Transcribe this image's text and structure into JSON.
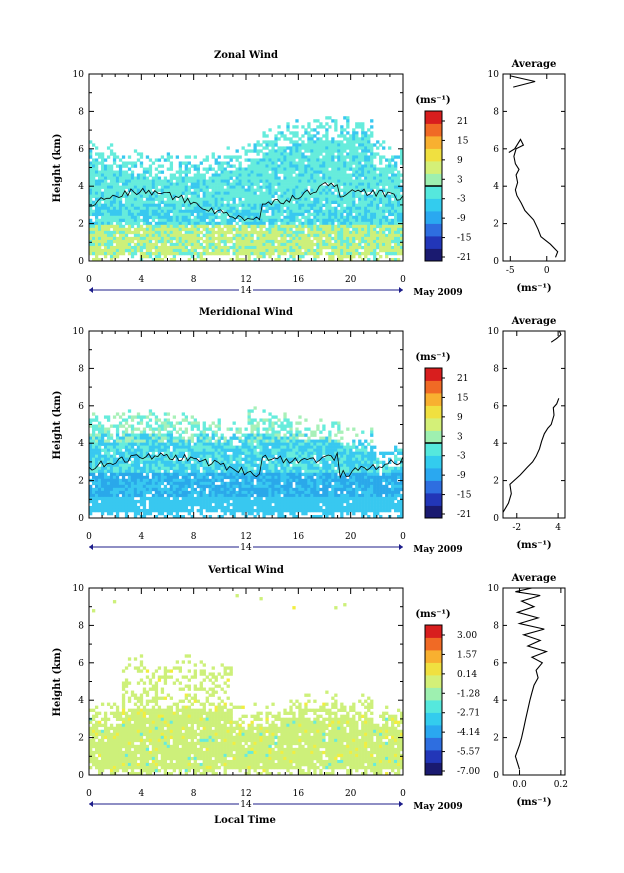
{
  "colors": {
    "scale": [
      "#1a1a70",
      "#2236b8",
      "#2e6ee0",
      "#2aa8f0",
      "#33ccee",
      "#55e8dd",
      "#9ef0b0",
      "#d4f078",
      "#f0e040",
      "#f8b030",
      "#f06a25",
      "#d81e1e"
    ],
    "wind_low": "#cdf07a",
    "wind_mid": "#66ecdc",
    "wind_high": "#38c8f0",
    "wind_dark": "#2aa8ea",
    "wind_yellow": "#f2ee40"
  },
  "x_axis": {
    "ticks": [
      "0",
      "4",
      "8",
      "12",
      "16",
      "20",
      "0"
    ],
    "date_label": "14",
    "month_label": "May 2009",
    "xlabel": "Local Time"
  },
  "panels": [
    {
      "title": "Zonal Wind",
      "ylabel": "Height (km)",
      "yticks": [
        "0",
        "2",
        "4",
        "6",
        "8",
        "10"
      ],
      "colorbar_unit": "(ms⁻¹)",
      "colorbar_ticks": [
        "21",
        "15",
        "9",
        "3",
        "-3",
        "-9",
        "-15",
        "-21"
      ],
      "avg_title": "Average",
      "avg_unit": "(ms⁻¹)",
      "avg_xticks": [
        "-5",
        "0"
      ]
    },
    {
      "title": "Meridional Wind",
      "ylabel": "Height (km)",
      "yticks": [
        "0",
        "2",
        "4",
        "6",
        "8",
        "10"
      ],
      "colorbar_unit": "(ms⁻¹)",
      "colorbar_ticks": [
        "21",
        "15",
        "9",
        "3",
        "-3",
        "-9",
        "-15",
        "-21"
      ],
      "avg_title": "Average",
      "avg_unit": "(ms⁻¹)",
      "avg_xticks": [
        "-2",
        "4"
      ]
    },
    {
      "title": "Vertical Wind",
      "ylabel": "Height (km)",
      "yticks": [
        "0",
        "2",
        "4",
        "6",
        "8",
        "10"
      ],
      "colorbar_unit": "(ms⁻¹)",
      "colorbar_ticks": [
        "3.00",
        "1.57",
        "0.14",
        "-1.28",
        "-2.71",
        "-4.14",
        "-5.57",
        "-7.00"
      ],
      "avg_title": "Average",
      "avg_unit": "(ms⁻¹)",
      "avg_xticks": [
        "0.0",
        "0.2"
      ]
    }
  ],
  "chart_data": [
    {
      "type": "heatmap",
      "title": "Zonal Wind",
      "xlabel": "",
      "ylabel": "Height (km)",
      "x_range_hours": [
        0,
        24
      ],
      "ylim": [
        0,
        10
      ],
      "colorbar_range": [
        -21,
        21
      ],
      "approx_cover": [
        {
          "height_range_km": [
            0,
            2
          ],
          "value": 1
        },
        {
          "height_range_km": [
            2,
            4
          ],
          "value": -3
        },
        {
          "height_range_km": [
            4,
            6.2
          ],
          "value": -2
        }
      ]
    },
    {
      "type": "line",
      "title": "Average",
      "xlabel": "(ms⁻¹)",
      "ylabel": "",
      "xlim": [
        -6,
        2.5
      ],
      "ylim": [
        0,
        10
      ],
      "series": [
        {
          "x": [
            1.2,
            1.5,
            0.5,
            -0.8,
            -1.2,
            -1.8,
            -3.0,
            -3.5,
            -4.1,
            -4.3,
            -4.0,
            -4.2,
            -3.8,
            -4.3,
            -4.5,
            -4.2,
            -3.2,
            -3.6,
            -4.4,
            -5.2,
            -4.6,
            -1.6,
            -5.0
          ],
          "y": [
            0.2,
            0.5,
            0.9,
            1.3,
            1.7,
            2.2,
            2.7,
            3.1,
            3.5,
            3.8,
            4.2,
            4.6,
            4.9,
            5.2,
            5.6,
            6.0,
            6.2,
            6.5,
            6.0,
            5.8,
            9.3,
            9.6,
            9.9
          ]
        }
      ]
    },
    {
      "type": "heatmap",
      "title": "Meridional Wind",
      "xlabel": "",
      "ylabel": "Height (km)",
      "x_range_hours": [
        0,
        24
      ],
      "ylim": [
        0,
        10
      ],
      "colorbar_range": [
        -21,
        21
      ],
      "approx_cover": [
        {
          "height_range_km": [
            0,
            1.2
          ],
          "value": -5
        },
        {
          "height_range_km": [
            1.2,
            2.4
          ],
          "value": -7
        },
        {
          "height_range_km": [
            2.4,
            4.5
          ],
          "value": -3
        },
        {
          "height_range_km": [
            4.5,
            6.2
          ],
          "value": 2
        }
      ]
    },
    {
      "type": "line",
      "title": "Average",
      "xlabel": "(ms⁻¹)",
      "ylabel": "",
      "xlim": [
        -4,
        5
      ],
      "ylim": [
        0,
        10
      ],
      "series": [
        {
          "x": [
            -4.0,
            -3.2,
            -2.8,
            -3.0,
            -1.5,
            -0.5,
            0.3,
            0.8,
            1.3,
            1.6,
            2.0,
            2.5,
            3.0,
            3.4,
            3.3,
            3.8,
            4.1,
            3.0,
            3.8,
            4.4,
            4.2
          ],
          "y": [
            0.3,
            0.8,
            1.3,
            1.8,
            2.3,
            2.7,
            3.0,
            3.3,
            3.7,
            4.1,
            4.5,
            4.8,
            5.0,
            5.5,
            5.9,
            6.1,
            6.4,
            9.4,
            9.6,
            9.8,
            10.0
          ]
        }
      ]
    },
    {
      "type": "heatmap",
      "title": "Vertical Wind",
      "xlabel": "Local Time",
      "ylabel": "Height (km)",
      "x_range_hours": [
        0,
        24
      ],
      "ylim": [
        0,
        10
      ],
      "colorbar_range": [
        -7.0,
        3.0
      ],
      "approx_cover": [
        {
          "height_range_km": [
            0.2,
            3.3
          ],
          "value": 0.4
        },
        {
          "height_range_km": [
            3.3,
            6.5
          ],
          "value": 0.6
        }
      ]
    },
    {
      "type": "line",
      "title": "Average",
      "xlabel": "(ms⁻¹)",
      "ylabel": "",
      "xlim": [
        -0.08,
        0.22
      ],
      "ylim": [
        0,
        10
      ],
      "series": [
        {
          "x": [
            0.0,
            -0.02,
            0.0,
            0.01,
            0.02,
            0.03,
            0.04,
            0.05,
            0.06,
            0.07,
            0.09,
            0.08,
            0.11,
            0.06,
            0.13,
            0.04,
            0.1,
            0.02,
            0.12,
            0.0,
            0.09,
            -0.01,
            0.07,
            0.01,
            0.1,
            -0.02,
            0.06
          ],
          "y": [
            0.3,
            1.0,
            1.6,
            2.0,
            2.5,
            3.0,
            3.5,
            4.0,
            4.4,
            4.8,
            5.2,
            5.6,
            6.0,
            6.3,
            6.6,
            6.9,
            7.2,
            7.5,
            7.8,
            8.1,
            8.4,
            8.7,
            9.0,
            9.3,
            9.6,
            9.8,
            10.0
          ]
        }
      ]
    }
  ]
}
